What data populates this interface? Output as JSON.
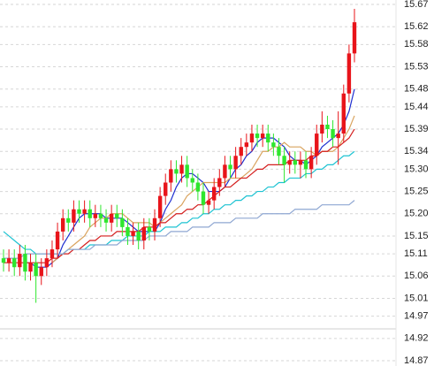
{
  "chart_data": {
    "type": "candlestick",
    "open": [
      15.1,
      15.09,
      15.1,
      15.08,
      15.11,
      15.07,
      15.09,
      15.06,
      15.08,
      15.1,
      15.12,
      15.16,
      15.19,
      15.18,
      15.21,
      15.2,
      15.21,
      15.19,
      15.2,
      15.19,
      15.18,
      15.2,
      15.19,
      15.17,
      15.15,
      15.16,
      15.14,
      15.17,
      15.16,
      15.19,
      15.24,
      15.27,
      15.3,
      15.29,
      15.31,
      15.28,
      15.27,
      15.25,
      15.22,
      15.23,
      15.26,
      15.28,
      15.31,
      15.3,
      15.33,
      15.35,
      15.36,
      15.38,
      15.37,
      15.38,
      15.36,
      15.35,
      15.33,
      15.31,
      15.32,
      15.31,
      15.32,
      15.3,
      15.33,
      15.38,
      15.4,
      15.39,
      15.37,
      15.38,
      15.47,
      15.56
    ],
    "high": [
      15.12,
      15.12,
      15.12,
      15.13,
      15.13,
      15.11,
      15.11,
      15.1,
      15.12,
      15.14,
      15.18,
      15.21,
      15.21,
      15.23,
      15.23,
      15.23,
      15.23,
      15.22,
      15.22,
      15.21,
      15.22,
      15.22,
      15.21,
      15.19,
      15.18,
      15.18,
      15.19,
      15.19,
      15.21,
      15.26,
      15.29,
      15.32,
      15.32,
      15.33,
      15.33,
      15.3,
      15.29,
      15.27,
      15.25,
      15.28,
      15.3,
      15.33,
      15.33,
      15.35,
      15.37,
      15.38,
      15.4,
      15.4,
      15.4,
      15.4,
      15.38,
      15.37,
      15.35,
      15.34,
      15.34,
      15.34,
      15.34,
      15.35,
      15.4,
      15.43,
      15.42,
      15.41,
      15.43,
      15.49,
      15.58,
      15.66
    ],
    "low": [
      15.07,
      15.07,
      15.06,
      15.06,
      15.05,
      15.05,
      15.0,
      15.04,
      15.06,
      15.08,
      15.1,
      15.14,
      15.16,
      15.16,
      15.18,
      15.18,
      15.17,
      15.17,
      15.17,
      15.16,
      15.16,
      15.17,
      15.15,
      15.13,
      15.13,
      15.12,
      15.12,
      15.14,
      15.14,
      15.17,
      15.22,
      15.25,
      15.27,
      15.27,
      15.26,
      15.25,
      15.23,
      15.2,
      15.2,
      15.21,
      15.24,
      15.26,
      15.28,
      15.28,
      15.31,
      15.33,
      15.34,
      15.35,
      15.35,
      15.34,
      15.33,
      15.31,
      15.27,
      15.29,
      15.29,
      15.28,
      15.28,
      15.28,
      15.31,
      15.36,
      15.37,
      15.35,
      15.31,
      15.36,
      15.45,
      15.54
    ],
    "close": [
      15.09,
      15.1,
      15.08,
      15.11,
      15.07,
      15.09,
      15.06,
      15.08,
      15.1,
      15.12,
      15.16,
      15.19,
      15.18,
      15.21,
      15.2,
      15.21,
      15.19,
      15.2,
      15.19,
      15.18,
      15.2,
      15.19,
      15.17,
      15.15,
      15.16,
      15.14,
      15.17,
      15.16,
      15.19,
      15.24,
      15.27,
      15.3,
      15.29,
      15.31,
      15.28,
      15.27,
      15.25,
      15.22,
      15.23,
      15.26,
      15.28,
      15.31,
      15.3,
      15.33,
      15.35,
      15.36,
      15.38,
      15.37,
      15.38,
      15.36,
      15.35,
      15.33,
      15.31,
      15.32,
      15.31,
      15.32,
      15.3,
      15.33,
      15.38,
      15.4,
      15.39,
      15.37,
      15.38,
      15.47,
      15.56,
      15.63
    ],
    "up_color": "#e8141a",
    "down_color": "#2ee62e",
    "series": [
      {
        "color": "#1f2fd0",
        "values": [
          null,
          null,
          null,
          null,
          15.09,
          15.09,
          15.08,
          15.08,
          15.08,
          15.09,
          15.1,
          15.13,
          15.15,
          15.17,
          15.19,
          15.2,
          15.2,
          15.2,
          15.2,
          15.19,
          15.19,
          15.19,
          15.19,
          15.18,
          15.17,
          15.16,
          15.16,
          15.16,
          15.16,
          15.18,
          15.21,
          15.23,
          15.26,
          15.28,
          15.29,
          15.29,
          15.28,
          15.27,
          15.25,
          15.25,
          15.25,
          15.26,
          15.28,
          15.3,
          15.31,
          15.33,
          15.34,
          15.36,
          15.37,
          15.37,
          15.37,
          15.36,
          15.35,
          15.33,
          15.32,
          15.32,
          15.31,
          15.32,
          15.33,
          15.35,
          15.36,
          15.37,
          15.38,
          15.4,
          15.43,
          15.48
        ]
      },
      {
        "color": "#d9a35e",
        "values": [
          null,
          null,
          null,
          null,
          null,
          null,
          null,
          null,
          null,
          15.09,
          15.1,
          15.11,
          15.12,
          15.13,
          15.14,
          15.15,
          15.17,
          15.18,
          15.19,
          15.19,
          15.2,
          15.2,
          15.2,
          15.19,
          15.18,
          15.18,
          15.18,
          15.18,
          15.17,
          15.18,
          15.19,
          15.2,
          15.21,
          15.22,
          15.24,
          15.25,
          15.26,
          15.27,
          15.27,
          15.27,
          15.27,
          15.27,
          15.28,
          15.28,
          15.28,
          15.29,
          15.3,
          15.32,
          15.34,
          15.34,
          15.35,
          15.35,
          15.36,
          15.35,
          15.35,
          15.35,
          15.34,
          15.34,
          15.33,
          15.34,
          15.34,
          15.34,
          15.35,
          15.37,
          15.39,
          15.42
        ]
      },
      {
        "color": "#d41e1e",
        "values": [
          15.09,
          15.09,
          15.09,
          15.09,
          15.09,
          15.09,
          15.09,
          15.09,
          15.09,
          15.1,
          15.1,
          15.11,
          15.11,
          15.12,
          15.12,
          15.13,
          15.14,
          15.14,
          15.15,
          15.15,
          15.15,
          15.16,
          15.16,
          15.16,
          15.16,
          15.16,
          15.17,
          15.17,
          15.17,
          15.18,
          15.18,
          15.19,
          15.2,
          15.2,
          15.21,
          15.21,
          15.22,
          15.22,
          15.23,
          15.24,
          15.25,
          15.26,
          15.26,
          15.27,
          15.28,
          15.28,
          15.29,
          15.3,
          15.3,
          15.31,
          15.31,
          15.31,
          15.31,
          15.32,
          15.32,
          15.32,
          15.32,
          15.33,
          15.33,
          15.34,
          15.34,
          15.35,
          15.35,
          15.36,
          15.37,
          15.39
        ]
      },
      {
        "color": "#1ec3d2",
        "values": [
          15.16,
          15.15,
          15.14,
          15.13,
          15.12,
          15.12,
          15.11,
          15.11,
          15.11,
          15.11,
          15.11,
          15.11,
          15.12,
          15.12,
          15.12,
          15.12,
          15.13,
          15.13,
          15.13,
          15.13,
          15.14,
          15.14,
          15.14,
          15.15,
          15.15,
          15.15,
          15.15,
          15.16,
          15.16,
          15.16,
          15.17,
          15.17,
          15.17,
          15.18,
          15.18,
          15.19,
          15.19,
          15.2,
          15.2,
          15.21,
          15.21,
          15.22,
          15.22,
          15.23,
          15.23,
          15.24,
          15.24,
          15.25,
          15.25,
          15.26,
          15.26,
          15.27,
          15.27,
          15.28,
          15.28,
          15.28,
          15.29,
          15.29,
          15.3,
          15.3,
          15.31,
          15.31,
          15.32,
          15.33,
          15.33,
          15.34
        ]
      },
      {
        "color": "#8fa7d2",
        "values": [
          15.1,
          15.1,
          15.1,
          15.1,
          15.11,
          15.11,
          15.11,
          15.11,
          15.11,
          15.11,
          15.11,
          15.11,
          15.12,
          15.12,
          15.12,
          15.12,
          15.12,
          15.13,
          15.13,
          15.13,
          15.13,
          15.13,
          15.14,
          15.14,
          15.14,
          15.14,
          15.14,
          15.15,
          15.15,
          15.15,
          15.15,
          15.16,
          15.16,
          15.16,
          15.16,
          15.17,
          15.17,
          15.17,
          15.17,
          15.18,
          15.18,
          15.18,
          15.18,
          15.19,
          15.19,
          15.19,
          15.19,
          15.19,
          15.2,
          15.2,
          15.2,
          15.2,
          15.2,
          15.2,
          15.21,
          15.21,
          15.21,
          15.21,
          15.21,
          15.22,
          15.22,
          15.22,
          15.22,
          15.22,
          15.22,
          15.23
        ]
      }
    ],
    "ylim": [
      14.87,
      15.67
    ],
    "yticks": [
      14.87,
      14.92,
      14.97,
      15.01,
      15.06,
      15.11,
      15.15,
      {
        "value": 15.2,
        "label": "15.20"
      },
      15.25,
      {
        "value": 15.3,
        "label": "15.30"
      },
      15.34,
      15.39,
      15.44,
      15.48,
      15.53,
      15.58,
      15.62,
      15.67
    ],
    "grid": true
  }
}
